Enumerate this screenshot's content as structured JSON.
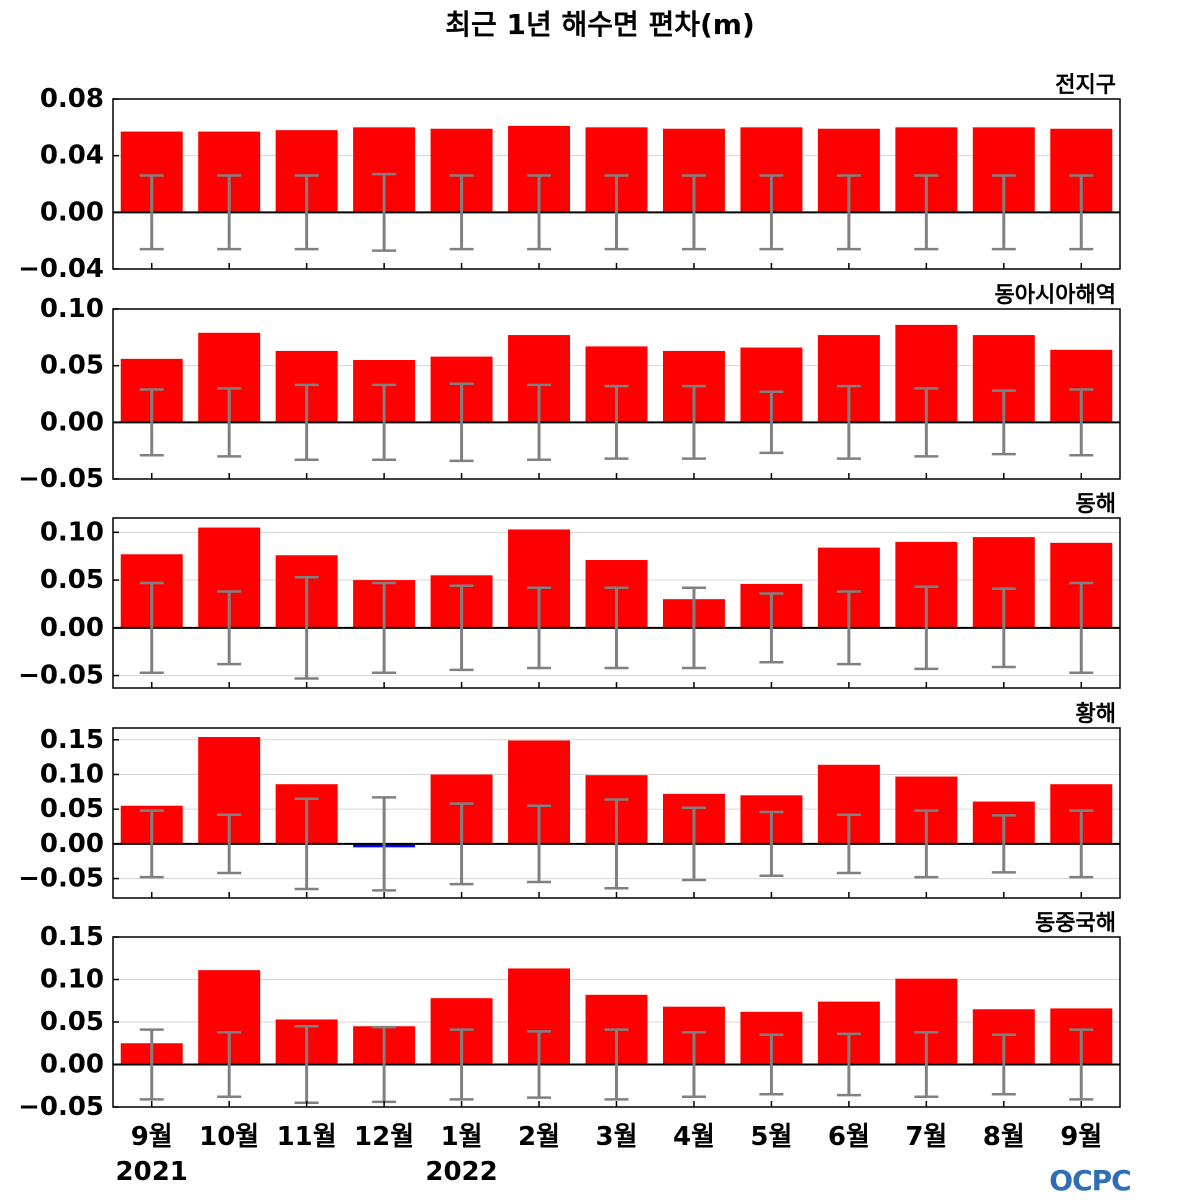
{
  "chart_data": {
    "type": "bar",
    "title": "최근 1년 해수면 편차(m)",
    "categories": [
      "9월",
      "10월",
      "11월",
      "12월",
      "1월",
      "2월",
      "3월",
      "4월",
      "5월",
      "6월",
      "7월",
      "8월",
      "9월"
    ],
    "year_labels": [
      {
        "text": "2021",
        "category_index": 0
      },
      {
        "text": "2022",
        "category_index": 4
      }
    ],
    "grid": true,
    "colors": {
      "positive_bar": "#ff0000",
      "negative_bar": "#0000ff",
      "error_bar": "#808080",
      "zero_line": "#000000",
      "grid": "#d6d6d6",
      "frame": "#000000"
    },
    "panels": [
      {
        "title": "전지구",
        "ylim": [
          -0.04,
          0.08
        ],
        "yticks": [
          0.08,
          0.04,
          0.0,
          -0.04
        ],
        "ytick_labels": [
          "0.08",
          "0.04",
          "0.00",
          "−0.04"
        ],
        "values": [
          0.057,
          0.057,
          0.058,
          0.06,
          0.059,
          0.061,
          0.06,
          0.059,
          0.06,
          0.059,
          0.06,
          0.06,
          0.059
        ],
        "errors": [
          0.026,
          0.026,
          0.026,
          0.027,
          0.026,
          0.026,
          0.026,
          0.026,
          0.026,
          0.026,
          0.026,
          0.026,
          0.026
        ]
      },
      {
        "title": "동아시아해역",
        "ylim": [
          -0.05,
          0.1
        ],
        "yticks": [
          0.1,
          0.05,
          0.0,
          -0.05
        ],
        "ytick_labels": [
          "0.10",
          "0.05",
          "0.00",
          "−0.05"
        ],
        "values": [
          0.056,
          0.079,
          0.063,
          0.055,
          0.058,
          0.077,
          0.067,
          0.063,
          0.066,
          0.077,
          0.086,
          0.077,
          0.064
        ],
        "errors": [
          0.029,
          0.03,
          0.033,
          0.033,
          0.034,
          0.033,
          0.032,
          0.032,
          0.027,
          0.032,
          0.03,
          0.028,
          0.029
        ]
      },
      {
        "title": "동해",
        "ylim": [
          -0.063,
          0.115
        ],
        "yticks": [
          0.1,
          0.05,
          0.0,
          -0.05
        ],
        "ytick_labels": [
          "0.10",
          "0.05",
          "0.00",
          "−0.05"
        ],
        "values": [
          0.077,
          0.105,
          0.076,
          0.05,
          0.055,
          0.103,
          0.071,
          0.03,
          0.046,
          0.084,
          0.09,
          0.095,
          0.089
        ],
        "errors": [
          0.047,
          0.038,
          0.053,
          0.047,
          0.044,
          0.042,
          0.042,
          0.042,
          0.036,
          0.038,
          0.043,
          0.041,
          0.047
        ]
      },
      {
        "title": "황해",
        "ylim": [
          -0.078,
          0.167
        ],
        "yticks": [
          0.15,
          0.1,
          0.05,
          0.0,
          -0.05
        ],
        "ytick_labels": [
          "0.15",
          "0.10",
          "0.05",
          "0.00",
          "−0.05"
        ],
        "values": [
          0.055,
          0.154,
          0.086,
          -0.005,
          0.1,
          0.149,
          0.099,
          0.072,
          0.07,
          0.114,
          0.097,
          0.061,
          0.086
        ],
        "errors": [
          0.048,
          0.042,
          0.065,
          0.067,
          0.058,
          0.055,
          0.064,
          0.052,
          0.046,
          0.042,
          0.048,
          0.041,
          0.048
        ]
      },
      {
        "title": "동중국해",
        "ylim": [
          -0.05,
          0.15
        ],
        "yticks": [
          0.15,
          0.1,
          0.05,
          0.0,
          -0.05
        ],
        "ytick_labels": [
          "0.15",
          "0.10",
          "0.05",
          "0.00",
          "−0.05"
        ],
        "values": [
          0.025,
          0.111,
          0.053,
          0.045,
          0.078,
          0.113,
          0.082,
          0.068,
          0.062,
          0.074,
          0.101,
          0.065,
          0.066
        ],
        "errors": [
          0.041,
          0.038,
          0.045,
          0.044,
          0.041,
          0.039,
          0.041,
          0.038,
          0.035,
          0.036,
          0.038,
          0.035,
          0.041
        ]
      }
    ]
  },
  "logo": {
    "text": "OCPC",
    "color": "#2f6db5"
  }
}
